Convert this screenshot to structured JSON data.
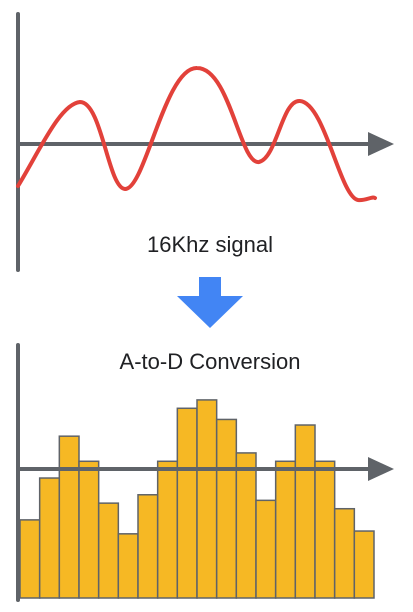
{
  "top_panel": {
    "caption": "16Khz signal",
    "signal_color": "#E2413A",
    "axis_color": "#5F6368"
  },
  "arrow": {
    "color": "#4285F4",
    "direction": "down"
  },
  "bottom_panel": {
    "caption": "A-to-D Conversion",
    "bar_fill": "#F6B824",
    "bar_stroke": "#5F6368",
    "axis_color": "#5F6368",
    "sample_levels": [
      0.28,
      0.43,
      0.58,
      0.49,
      0.34,
      0.23,
      0.37,
      0.49,
      0.68,
      0.71,
      0.64,
      0.52,
      0.35,
      0.49,
      0.62,
      0.49,
      0.32,
      0.24
    ]
  }
}
